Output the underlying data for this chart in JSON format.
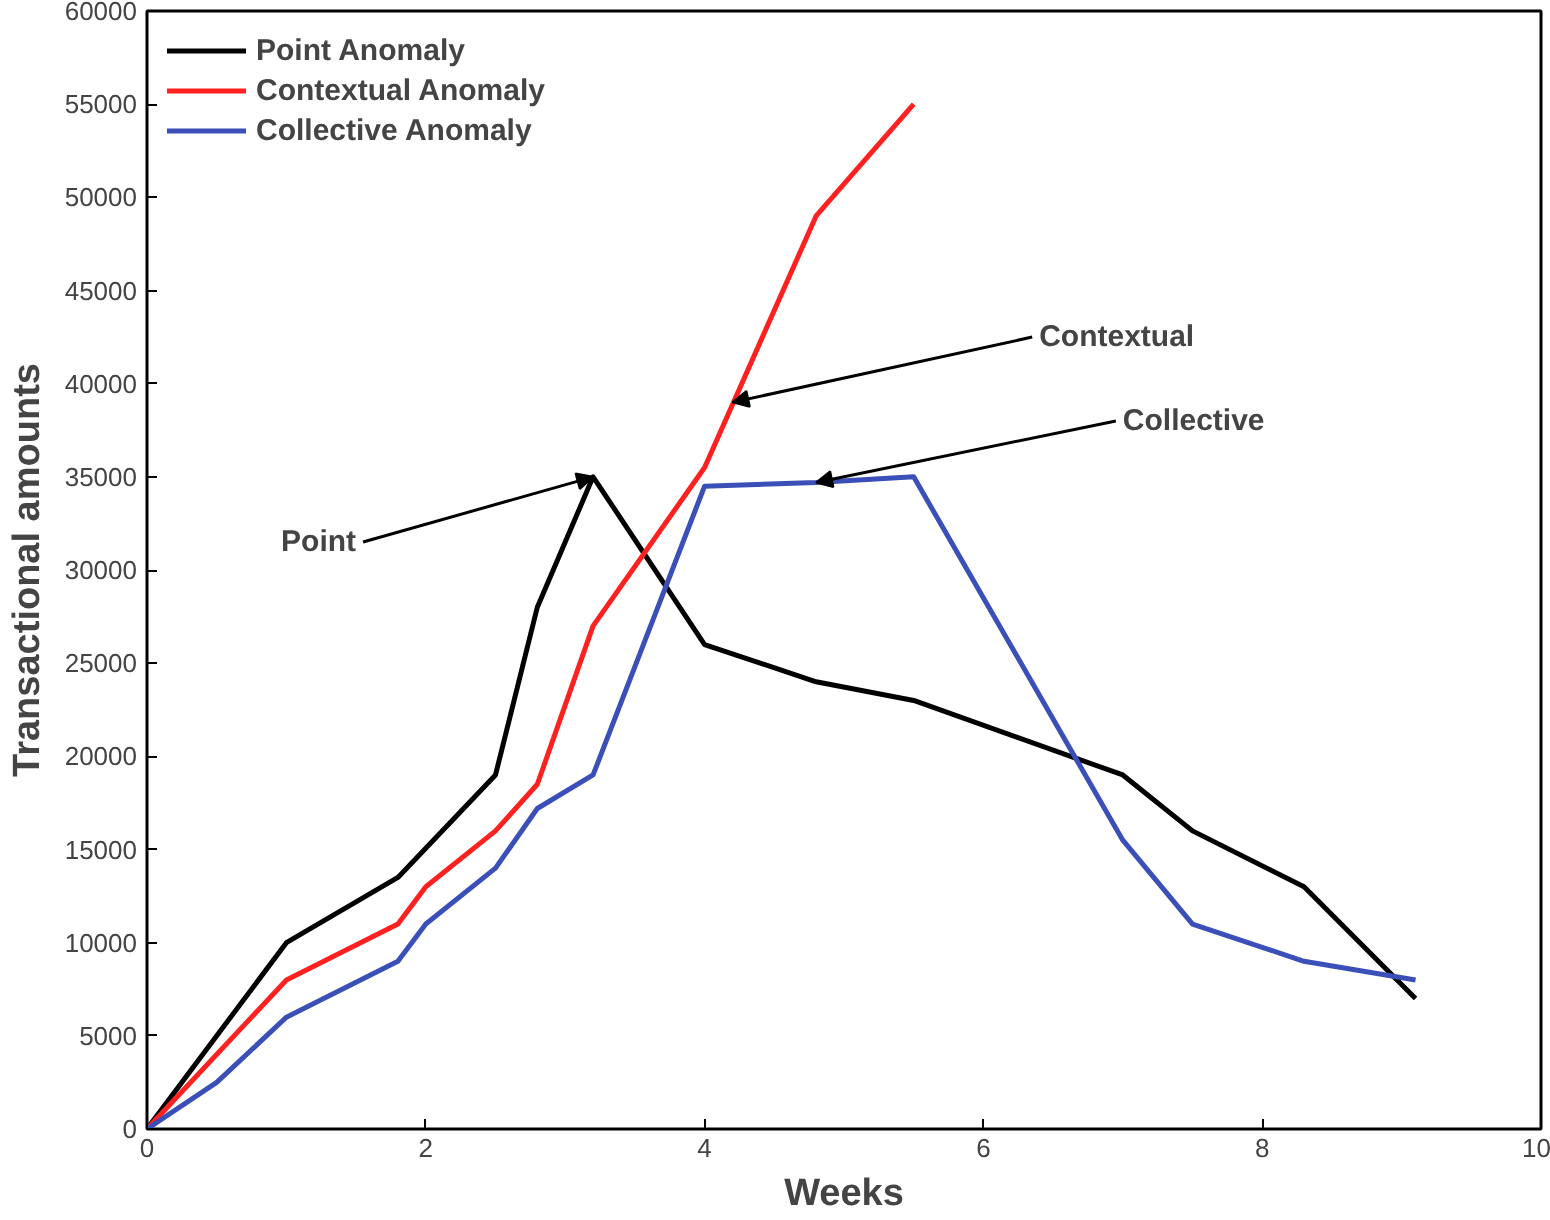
{
  "chart_data": {
    "type": "line",
    "xlabel": "Weeks",
    "ylabel": "Transactional amounts",
    "xlim": [
      0,
      10
    ],
    "ylim": [
      0,
      60000
    ],
    "xticks": [
      0,
      2,
      4,
      6,
      8,
      10
    ],
    "yticks": [
      0,
      5000,
      10000,
      15000,
      20000,
      25000,
      30000,
      35000,
      40000,
      45000,
      50000,
      55000,
      60000
    ],
    "grid": false,
    "legend": "top left",
    "marker": "none",
    "line_style": "solid",
    "series": [
      {
        "name": "Point Anomaly",
        "color": "#000000",
        "x": [
          0,
          1,
          1.8,
          2.5,
          2.8,
          3.2,
          4,
          4.8,
          5.5,
          7,
          7.5,
          8.3,
          9.1
        ],
        "values": [
          0,
          10000,
          13500,
          19000,
          28000,
          35000,
          26000,
          24000,
          23000,
          19000,
          16000,
          13000,
          7000
        ]
      },
      {
        "name": "Contextual Anomaly",
        "color": "#ff2020",
        "x": [
          0,
          1,
          1.8,
          2,
          2.5,
          2.8,
          3.2,
          4,
          4.8,
          5.5
        ],
        "values": [
          0,
          8000,
          11000,
          13000,
          16000,
          18500,
          27000,
          35500,
          49000,
          55000
        ]
      },
      {
        "name": "Collective Anomaly",
        "color": "#3a4fb8",
        "x": [
          0,
          0.5,
          1,
          1.8,
          2,
          2.5,
          2.8,
          3.2,
          4,
          4.8,
          5.5,
          7,
          7.5,
          8.3,
          9.1
        ],
        "values": [
          0,
          2500,
          6000,
          9000,
          11000,
          14000,
          17200,
          19000,
          34500,
          34700,
          35000,
          15500,
          11000,
          9000,
          8000
        ]
      }
    ],
    "annotations": [
      {
        "text": "Point",
        "x": 3.2,
        "y": 35000
      },
      {
        "text": "Contextual",
        "x": 4.2,
        "y": 39000
      },
      {
        "text": "Collective",
        "x": 4.8,
        "y": 34700
      }
    ]
  }
}
